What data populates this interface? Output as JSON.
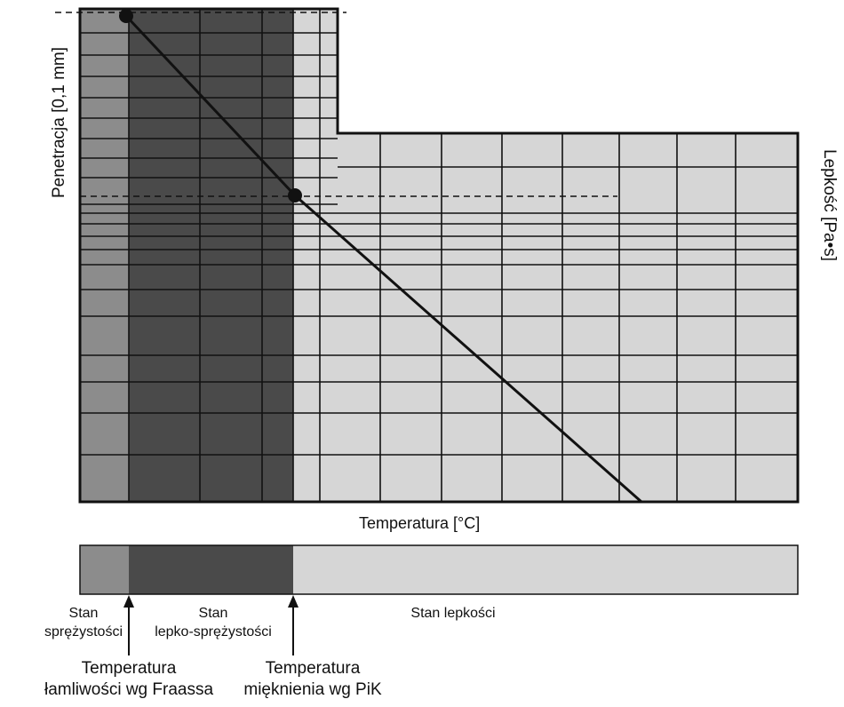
{
  "axes": {
    "y_left_label": "Penetracja [0,1 mm]",
    "y_right_label": "Lepkość [Pa•s]",
    "x_label": "Temperatura [°C]"
  },
  "states": {
    "elastic": "Stan\nsprężystości",
    "viscoelastic": "Stan\nlepko-sprężystości",
    "viscous": "Stan lepkości"
  },
  "markers": {
    "fraass": "Temperatura\nłamliwości wg Fraassa",
    "pik": "Temperatura\nmięknienia wg PiK"
  },
  "colors": {
    "elastic_zone": "#8c8c8c",
    "viscoelastic_zone": "#4a4a4a",
    "viscous_zone": "#d6d6d6",
    "grid": "#111111"
  }
}
